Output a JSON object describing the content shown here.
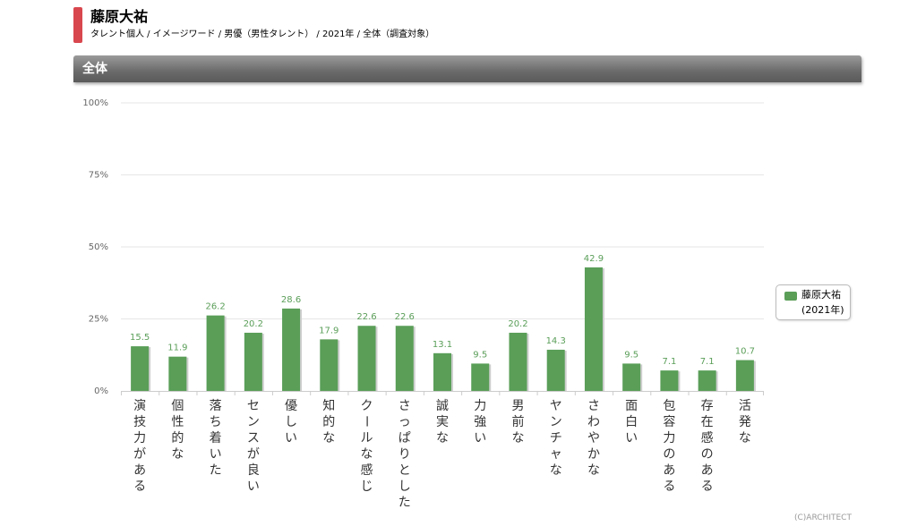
{
  "header": {
    "title": "藤原大祐",
    "subtitle": "タレント個人 / イメージワード / 男優（男性タレント） / 2021年 / 全体（調査対象）"
  },
  "section": {
    "label": "全体"
  },
  "legend": {
    "name": "藤原大祐",
    "sub": "(2021年)"
  },
  "credit": "(C)ARCHITECT",
  "colors": {
    "bar": "#5a9e58",
    "bar_shadow": "#cfcfcf",
    "label": "#5a9e58",
    "accent": "#d9474e"
  },
  "chart_data": {
    "type": "bar",
    "categories": [
      "演技力がある",
      "個性的な",
      "落ち着いた",
      "センスが良い",
      "優しい",
      "知的な",
      "クールな感じ",
      "さっぱりとした",
      "誠実な",
      "力強い",
      "男前な",
      "ヤンチャな",
      "さわやかな",
      "面白い",
      "包容力のある",
      "存在感のある",
      "活発な"
    ],
    "series": [
      {
        "name": "藤原大祐",
        "values": [
          15.5,
          11.9,
          26.2,
          20.2,
          28.6,
          17.9,
          22.6,
          22.6,
          13.1,
          9.5,
          20.2,
          14.3,
          42.9,
          9.5,
          7.1,
          7.1,
          10.7
        ]
      }
    ],
    "y_ticks": [
      "0%",
      "25%",
      "50%",
      "75%",
      "100%"
    ],
    "ylim": [
      0,
      100
    ],
    "grid": true,
    "legend_position": "right"
  }
}
